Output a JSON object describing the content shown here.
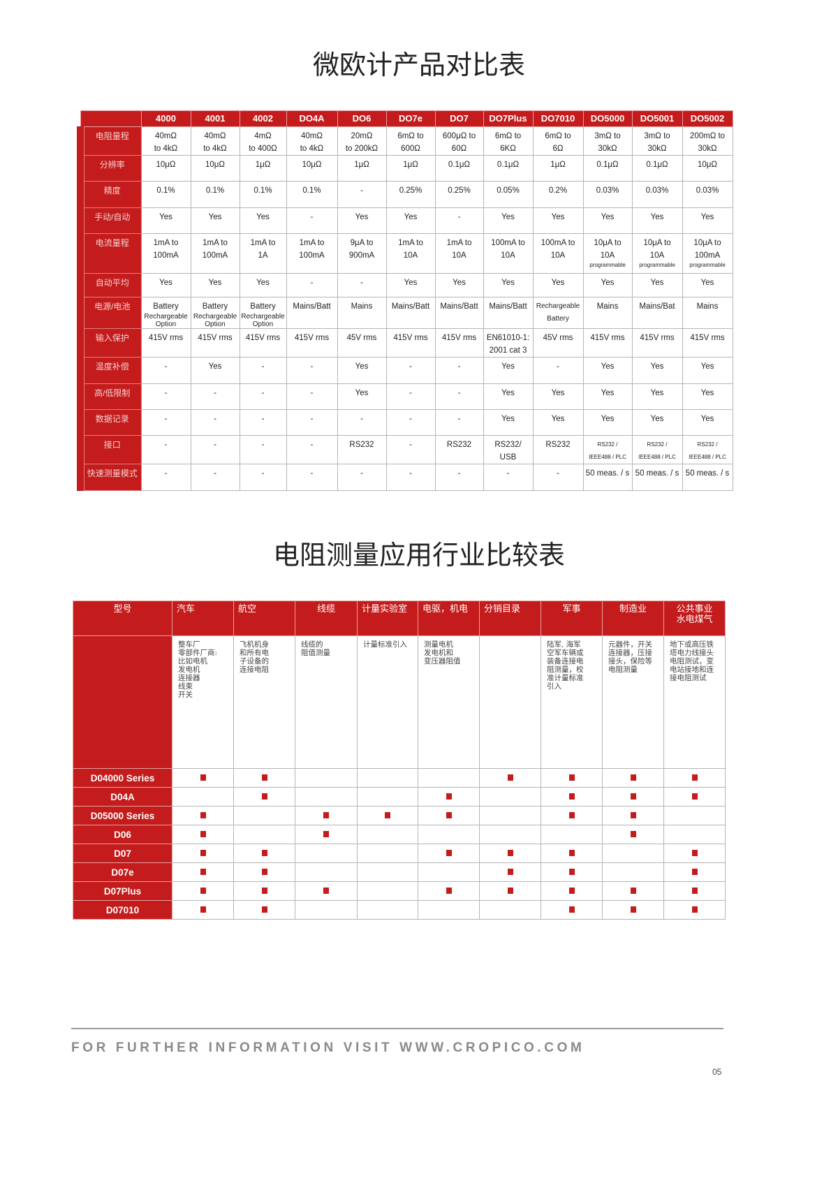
{
  "title1": "微欧计产品对比表",
  "table1": {
    "columns": [
      "4000",
      "4001",
      "4002",
      "DO4A",
      "DO6",
      "DO7e",
      "DO7",
      "DO7Plus",
      "DO7010",
      "DO5000",
      "DO5001",
      "DO5002"
    ],
    "rows": [
      {
        "label": "电阻量程",
        "cells": [
          "40mΩ\nto 4kΩ",
          "40mΩ\nto 4kΩ",
          "4mΩ\nto 400Ω",
          "40mΩ\nto 4kΩ",
          "20mΩ\nto 200kΩ",
          "6mΩ to\n600Ω",
          "600μΩ to\n60Ω",
          "6mΩ to\n6KΩ",
          "6mΩ to\n6Ω",
          "3mΩ to\n30kΩ",
          "3mΩ to\n30kΩ",
          "200mΩ to\n30kΩ"
        ]
      },
      {
        "label": "分辨率",
        "cells": [
          "10μΩ",
          "10μΩ",
          "1μΩ",
          "10μΩ",
          "1μΩ",
          "1μΩ",
          "0.1μΩ",
          "0.1μΩ",
          "1μΩ",
          "0.1μΩ",
          "0.1μΩ",
          "10μΩ"
        ]
      },
      {
        "label": "精度",
        "cells": [
          "0.1%",
          "0.1%",
          "0.1%",
          "0.1%",
          "-",
          "0.25%",
          "0.25%",
          "0.05%",
          "0.2%",
          "0.03%",
          "0.03%",
          "0.03%"
        ]
      },
      {
        "label": "手动/自动",
        "cells": [
          "Yes",
          "Yes",
          "Yes",
          "-",
          "Yes",
          "Yes",
          "-",
          "Yes",
          "Yes",
          "Yes",
          "Yes",
          "Yes"
        ]
      },
      {
        "label": "电流量程",
        "cells": [
          "1mA to\n100mA",
          "1mA to\n100mA",
          "1mA to\n1A",
          "1mA to\n100mA",
          "9μA to\n900mA",
          "1mA to\n10A",
          "1mA to\n10A",
          "100mA to\n10A",
          "100mA to\n10A",
          "10μA to\n10A",
          "10μA to\n10A",
          "10μA to\n100mA"
        ],
        "notes": [
          "",
          "",
          "",
          "",
          "",
          "",
          "",
          "",
          "",
          "programmable",
          "programmable",
          "programmable"
        ]
      },
      {
        "label": "自动平均",
        "cells": [
          "Yes",
          "Yes",
          "Yes",
          "-",
          "-",
          "Yes",
          "Yes",
          "Yes",
          "Yes",
          "Yes",
          "Yes",
          "Yes"
        ]
      },
      {
        "label": "电源/电池",
        "cells": [
          "Battery",
          "Battery",
          "Battery",
          "Mains/Batt",
          "Mains",
          "Mains/Batt",
          "Mains/Batt",
          "Mains/Batt",
          "Rechargeable\nBattery",
          "Mains",
          "Mains/Bat",
          "Mains"
        ],
        "notes": [
          "Rechargeable\nOption",
          "Rechargeable\nOption",
          "Rechargeable\nOption",
          "",
          "",
          "",
          "",
          "",
          "",
          "",
          "",
          ""
        ]
      },
      {
        "label": "输入保护",
        "cells": [
          "415V rms",
          "415V rms",
          "415V rms",
          "415V rms",
          "45V rms",
          "415V rms",
          "415V rms",
          "EN61010-1:\n2001 cat 3",
          "45V rms",
          "415V rms",
          "415V rms",
          "415V rms"
        ]
      },
      {
        "label": "温度补偿",
        "cells": [
          "-",
          "Yes",
          "-",
          "-",
          "Yes",
          "-",
          "-",
          "Yes",
          "-",
          "Yes",
          "Yes",
          "Yes"
        ]
      },
      {
        "label": "高/低限制",
        "cells": [
          "-",
          "-",
          "-",
          "-",
          "Yes",
          "-",
          "-",
          "Yes",
          "Yes",
          "Yes",
          "Yes",
          "Yes"
        ]
      },
      {
        "label": "数据记录",
        "cells": [
          "-",
          "-",
          "-",
          "-",
          "-",
          "-",
          "-",
          "Yes",
          "Yes",
          "Yes",
          "Yes",
          "Yes"
        ]
      },
      {
        "label": "接口",
        "cells": [
          "-",
          "-",
          "-",
          "-",
          "RS232",
          "-",
          "RS232",
          "RS232/\nUSB",
          "RS232",
          "RS232 /\nIEEE488 / PLC",
          "RS232 /\nIEEE488 / PLC",
          "RS232 /\nIEEE488 / PLC"
        ]
      },
      {
        "label": "快速测量模式",
        "cells": [
          "-",
          "-",
          "-",
          "-",
          "-",
          "-",
          "-",
          "-",
          "-",
          "50 meas. / s",
          "50 meas. / s",
          "50 meas. / s"
        ]
      }
    ]
  },
  "title2": "电阻测量应用行业比较表",
  "table2": {
    "corner": "型号",
    "columns": [
      "汽车",
      "航空",
      "线缆",
      "计量实验室",
      "电驱，机电",
      "分销目录",
      "军事",
      "制造业",
      "公共事业\n水电煤气"
    ],
    "descriptions": [
      "整车厂\n零部件厂商:\n比如电机\n发电机\n连接器\n线束\n开关",
      "飞机机身\n和所有电\n子设备的\n连接电阻",
      "线缆的\n阻值测量",
      "计量标准引入",
      "测量电机\n发电机和\n变压器阻值",
      "",
      "陆军, 海军\n空军车辆或\n装备连接电\n阻测量，校\n准计量标准\n引入",
      "元器件，开关\n连接器，压接\n接头，保险等\n电阻测量",
      "地下或高压铁\n塔电力线接头\n电阻测试，变\n电站接地和连\n接电阻测试"
    ],
    "rows": [
      {
        "model": "D04000 Series",
        "marks": [
          1,
          1,
          0,
          0,
          0,
          1,
          1,
          1,
          1
        ]
      },
      {
        "model": "D04A",
        "marks": [
          0,
          1,
          0,
          0,
          1,
          0,
          1,
          1,
          1
        ]
      },
      {
        "model": "D05000 Series",
        "marks": [
          1,
          0,
          1,
          1,
          1,
          0,
          1,
          1,
          0
        ]
      },
      {
        "model": "D06",
        "marks": [
          1,
          0,
          1,
          0,
          0,
          0,
          0,
          1,
          0
        ]
      },
      {
        "model": "D07",
        "marks": [
          1,
          1,
          0,
          0,
          1,
          1,
          1,
          0,
          1
        ]
      },
      {
        "model": "D07e",
        "marks": [
          1,
          1,
          0,
          0,
          0,
          1,
          1,
          0,
          1
        ]
      },
      {
        "model": "D07Plus",
        "marks": [
          1,
          1,
          1,
          0,
          1,
          1,
          1,
          1,
          1
        ]
      },
      {
        "model": "D07010",
        "marks": [
          1,
          1,
          0,
          0,
          0,
          0,
          1,
          1,
          1
        ]
      }
    ],
    "mark_icon": "red-square-icon"
  },
  "footer": {
    "text": "FOR FURTHER INFORMATION VISIT WWW.CROPICO.COM",
    "page": "05"
  },
  "colors": {
    "accent": "#c41c1c"
  }
}
